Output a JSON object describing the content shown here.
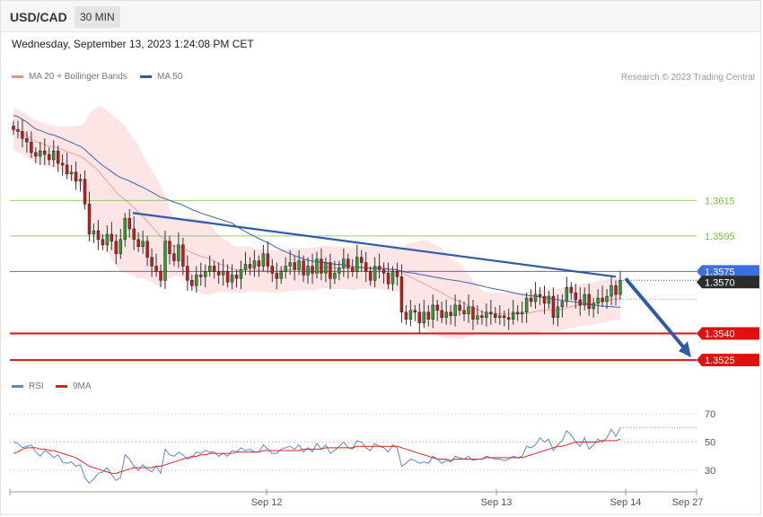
{
  "header": {
    "symbol": "USD/CAD",
    "timeframe": "30 MIN",
    "datetime": "Wednesday, September 13, 2023 1:24:08 PM CET"
  },
  "legend": {
    "ma20": {
      "label": "MA 20 + Bollinger Bands",
      "color": "#f28a8a"
    },
    "ma50": {
      "label": "MA 50",
      "color": "#2c5aa0"
    },
    "copyright": "Research © 2023 Trading Central"
  },
  "rsi_legend": {
    "rsi": {
      "label": "RSI",
      "color": "#5b86d6"
    },
    "ma9": {
      "label": "9MA",
      "color": "#e02020"
    }
  },
  "chart_data": [
    {
      "type": "candlestick",
      "title": "USD/CAD",
      "x_ticks": [
        "Sep 12",
        "Sep 13",
        "Sep 14",
        "Sep 27"
      ],
      "ylim": [
        1.3518,
        1.368
      ],
      "levels": [
        {
          "value": 1.3615,
          "label": "1.3615",
          "color": "#7cba3e"
        },
        {
          "value": 1.3595,
          "label": "1.3595",
          "color": "#7cba3e"
        },
        {
          "value": 1.3575,
          "label": "1.3575",
          "color": "#3b6fe0"
        },
        {
          "value": 1.357,
          "label": "1.3570",
          "color": "#333333"
        },
        {
          "value": 1.354,
          "label": "1.3540",
          "color": "#e01010"
        },
        {
          "value": 1.3525,
          "label": "1.3525",
          "color": "#e01010"
        }
      ],
      "trendline": {
        "from": 1.3608,
        "to": 1.3572
      },
      "forecast_arrow": {
        "from": 1.357,
        "to": 1.3525
      },
      "close": [
        1.3655,
        1.3654,
        1.365,
        1.3648,
        1.3642,
        1.364,
        1.3643,
        1.3641,
        1.3638,
        1.3643,
        1.3636,
        1.3635,
        1.363,
        1.3631,
        1.3626,
        1.3627,
        1.3613,
        1.3596,
        1.3598,
        1.3593,
        1.359,
        1.3596,
        1.3592,
        1.3585,
        1.3593,
        1.3605,
        1.3599,
        1.3593,
        1.3589,
        1.3592,
        1.3583,
        1.3578,
        1.3575,
        1.357,
        1.3592,
        1.3585,
        1.3581,
        1.359,
        1.3578,
        1.357,
        1.3567,
        1.3573,
        1.3572,
        1.3575,
        1.3578,
        1.3575,
        1.3573,
        1.3575,
        1.3569,
        1.3573,
        1.3571,
        1.3576,
        1.3579,
        1.3577,
        1.3581,
        1.3578,
        1.3585,
        1.3578,
        1.3574,
        1.3571,
        1.3575,
        1.3578,
        1.358,
        1.3576,
        1.3581,
        1.3573,
        1.3578,
        1.3574,
        1.3582,
        1.3574,
        1.358,
        1.3571,
        1.3574,
        1.3577,
        1.3582,
        1.3577,
        1.3575,
        1.3583,
        1.358,
        1.3575,
        1.357,
        1.3578,
        1.3576,
        1.3574,
        1.3568,
        1.3575,
        1.3572,
        1.3552,
        1.3548,
        1.3553,
        1.3552,
        1.3546,
        1.3552,
        1.3548,
        1.3556,
        1.3553,
        1.3549,
        1.3552,
        1.355,
        1.3556,
        1.3553,
        1.3551,
        1.3555,
        1.3548,
        1.355,
        1.3549,
        1.3552,
        1.3551,
        1.3549,
        1.355,
        1.3549,
        1.3548,
        1.3552,
        1.3551,
        1.3552,
        1.356,
        1.3558,
        1.3562,
        1.3561,
        1.3557,
        1.3561,
        1.3549,
        1.3555,
        1.3558,
        1.3566,
        1.3563,
        1.3559,
        1.3556,
        1.3562,
        1.3554,
        1.3557,
        1.356,
        1.3558,
        1.3561,
        1.3567,
        1.3562,
        1.357
      ]
    },
    {
      "type": "line",
      "title": "RSI",
      "ylim": [
        20,
        80
      ],
      "y_ticks": [
        30,
        50,
        70
      ],
      "series": [
        {
          "name": "RSI",
          "values": [
            50,
            49,
            46,
            47,
            48,
            43,
            40,
            44,
            42,
            39,
            41,
            36,
            35,
            36,
            33,
            34,
            25,
            21,
            24,
            28,
            29,
            32,
            27,
            23,
            25,
            41,
            38,
            33,
            30,
            34,
            31,
            29,
            33,
            28,
            45,
            41,
            40,
            43,
            41,
            38,
            39,
            43,
            42,
            44,
            43,
            43,
            40,
            42,
            40,
            44,
            43,
            46,
            44,
            45,
            43,
            43,
            48,
            45,
            42,
            42,
            45,
            46,
            47,
            45,
            48,
            43,
            46,
            43,
            49,
            45,
            48,
            42,
            44,
            47,
            50,
            46,
            45,
            51,
            50,
            46,
            44,
            49,
            47,
            46,
            43,
            48,
            46,
            33,
            35,
            38,
            37,
            35,
            36,
            35,
            40,
            38,
            35,
            37,
            36,
            40,
            39,
            38,
            40,
            37,
            38,
            38,
            40,
            39,
            38,
            38,
            37,
            38,
            40,
            39,
            40,
            47,
            46,
            48,
            53,
            50,
            52,
            44,
            48,
            51,
            58,
            55,
            50,
            47,
            53,
            45,
            48,
            52,
            50,
            53,
            59,
            54,
            60
          ]
        },
        {
          "name": "9MA",
          "values": [
            42,
            43,
            45,
            46,
            46,
            46,
            45,
            45,
            44,
            44,
            43,
            42,
            41,
            40,
            39,
            37,
            35,
            33,
            32,
            31,
            30,
            29,
            28,
            28,
            29,
            30,
            31,
            32,
            32,
            32,
            32,
            32,
            33,
            33,
            34,
            35,
            36,
            37,
            38,
            39,
            40,
            40,
            41,
            41,
            42,
            42,
            42,
            42,
            42,
            42,
            43,
            43,
            43,
            43,
            43,
            43,
            44,
            44,
            44,
            44,
            44,
            44,
            44,
            44,
            44,
            45,
            45,
            45,
            45,
            45,
            46,
            46,
            46,
            46,
            46,
            46,
            46,
            47,
            47,
            47,
            47,
            47,
            47,
            47,
            47,
            47,
            47,
            46,
            45,
            44,
            43,
            42,
            41,
            40,
            39,
            38,
            38,
            38,
            37,
            38,
            38,
            38,
            38,
            38,
            38,
            38,
            39,
            39,
            39,
            39,
            39,
            39,
            39,
            39,
            39,
            40,
            41,
            42,
            43,
            44,
            45,
            46,
            47,
            47,
            48,
            49,
            50,
            50,
            50,
            50,
            50,
            50,
            51,
            51,
            51,
            51,
            52
          ]
        }
      ]
    }
  ]
}
